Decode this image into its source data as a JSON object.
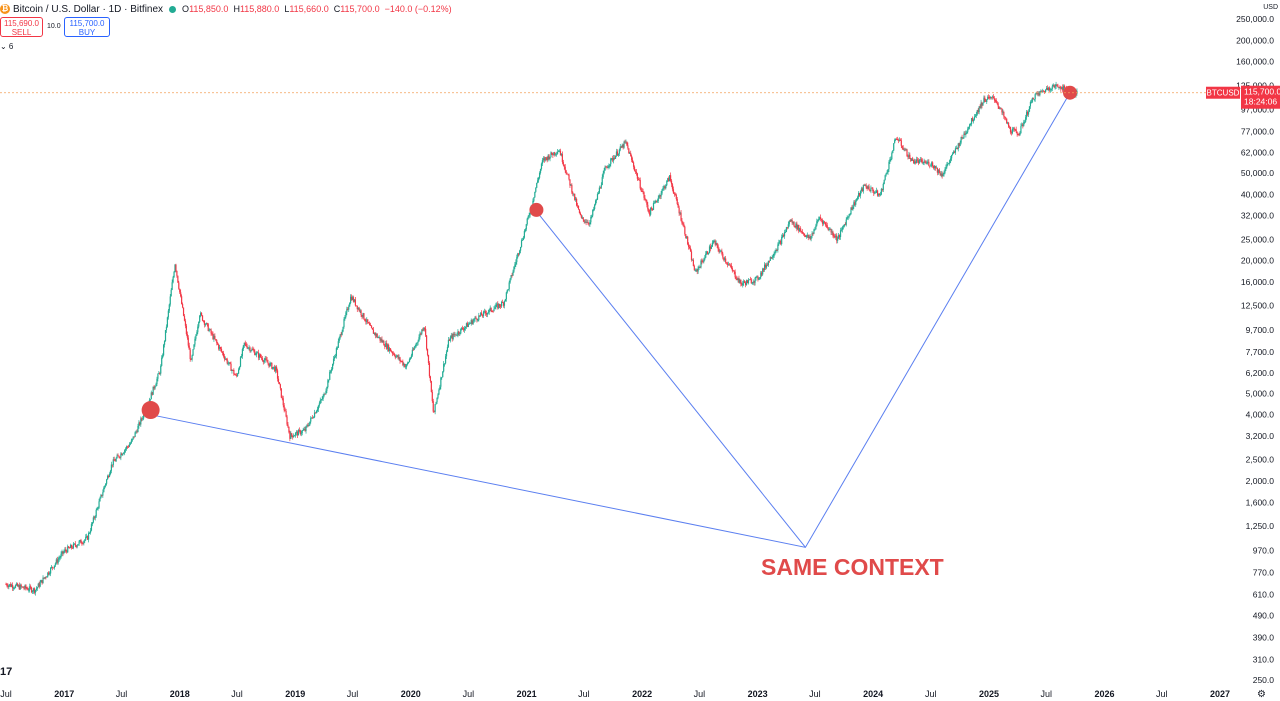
{
  "header": {
    "coin_icon": "bitcoin-icon",
    "symbol_title": "Bitcoin / U.S. Dollar · 1D · Bitfinex",
    "ohlc": {
      "open_label": "O",
      "open": "115,850.0",
      "high_label": "H",
      "high": "115,880.0",
      "low_label": "L",
      "low": "115,660.0",
      "close_label": "C",
      "close": "115,700.0",
      "change": "−140.0 (−0.12%)"
    }
  },
  "trade": {
    "sell_price": "115,690.0",
    "sell_label": "SELL",
    "spread": "10.0",
    "buy_price": "115,700.0",
    "buy_label": "BUY"
  },
  "indicators_toggle": "⌄ 6",
  "price_scale": {
    "currency": "USD",
    "ticks": [
      "250,000.0",
      "200,000.0",
      "160,000.0",
      "125,000.0",
      "97,000.0",
      "77,000.0",
      "62,000.0",
      "50,000.0",
      "40,000.0",
      "32,000.0",
      "25,000.0",
      "20,000.0",
      "16,000.0",
      "12,500.0",
      "9,700.0",
      "7,700.0",
      "6,200.0",
      "5,000.0",
      "4,000.0",
      "3,200.0",
      "2,500.0",
      "2,000.0",
      "1,600.0",
      "1,250.0",
      "970.0",
      "770.0",
      "610.0",
      "490.0",
      "390.0",
      "310.0",
      "250.0"
    ]
  },
  "last_price": {
    "symbol": "BTCUSD",
    "price": "115,700.0",
    "countdown": "18:24:06"
  },
  "time_axis": {
    "labels": [
      "Jul",
      "2017",
      "Jul",
      "2018",
      "Jul",
      "2019",
      "Jul",
      "2020",
      "Jul",
      "2021",
      "Jul",
      "2022",
      "Jul",
      "2023",
      "Jul",
      "2024",
      "Jul",
      "2025",
      "Jul",
      "2026",
      "Jul",
      "2027"
    ]
  },
  "annotation": {
    "text": "SAME CONTEXT"
  },
  "logo": "TradingView-logo",
  "colors": {
    "up": "#22ab94",
    "down": "#f23645",
    "marker": "#e04a4a",
    "trendline": "#5b7ff0",
    "annotation": "#e04a4a",
    "price_line": "#f2a05a"
  },
  "chart_data": {
    "type": "line",
    "title": "Bitcoin / U.S. Dollar · 1D · Bitfinex",
    "xlabel": "",
    "ylabel": "USD",
    "y_scale": "log",
    "ylim": [
      250,
      250000
    ],
    "xlim": [
      "2016-07-01",
      "2027-01-01"
    ],
    "series": [
      {
        "name": "BTCUSD",
        "x": [
          "2016-07-01",
          "2016-10-01",
          "2017-01-01",
          "2017-03-15",
          "2017-06-01",
          "2017-08-01",
          "2017-09-15",
          "2017-11-01",
          "2017-12-17",
          "2018-02-06",
          "2018-03-05",
          "2018-06-29",
          "2018-07-24",
          "2018-11-01",
          "2018-12-15",
          "2019-02-01",
          "2019-04-02",
          "2019-06-26",
          "2019-09-01",
          "2019-12-18",
          "2020-02-13",
          "2020-03-13",
          "2020-05-01",
          "2020-07-27",
          "2020-10-21",
          "2020-12-31",
          "2021-02-21",
          "2021-04-14",
          "2021-06-22",
          "2021-07-20",
          "2021-09-07",
          "2021-11-10",
          "2022-01-24",
          "2022-03-29",
          "2022-05-12",
          "2022-06-18",
          "2022-08-15",
          "2022-11-09",
          "2022-12-31",
          "2023-03-15",
          "2023-04-14",
          "2023-06-15",
          "2023-07-15",
          "2023-09-11",
          "2023-10-24",
          "2023-12-05",
          "2024-01-23",
          "2024-03-14",
          "2024-05-01",
          "2024-07-05",
          "2024-08-05",
          "2024-11-12",
          "2024-12-17",
          "2025-01-20",
          "2025-03-10",
          "2025-04-07",
          "2025-05-22",
          "2025-07-14",
          "2025-08-14",
          "2025-09-14",
          "2025-10-06"
        ],
        "y": [
          680,
          640,
          960,
          1100,
          2400,
          3000,
          4200,
          6400,
          19500,
          6900,
          11500,
          5900,
          8400,
          6400,
          3200,
          3400,
          4900,
          13800,
          9600,
          6600,
          10300,
          4000,
          8800,
          11000,
          12900,
          29000,
          57000,
          64000,
          31000,
          29800,
          52800,
          68900,
          33000,
          47800,
          28500,
          17600,
          24400,
          15700,
          16500,
          24500,
          30500,
          25000,
          31500,
          25000,
          34500,
          44000,
          39500,
          73000,
          57000,
          55000,
          49000,
          89000,
          108000,
          109000,
          78000,
          76000,
          111000,
          123000,
          124000,
          115000,
          115700
        ]
      },
      {
        "name": "",
        "type": "annotation-line",
        "x": [
          "2017-10-01",
          "2023-06-01",
          "2025-09-14"
        ],
        "y": [
          4000,
          1000,
          115700
        ]
      },
      {
        "name": "",
        "type": "annotation-line",
        "x": [
          "2021-02-01",
          "2023-06-01"
        ],
        "y": [
          33500,
          1000
        ]
      }
    ],
    "markers": [
      {
        "x": "2017-10-01",
        "y": 4200,
        "size": "large"
      },
      {
        "x": "2021-02-01",
        "y": 34000,
        "size": "medium"
      },
      {
        "x": "2025-09-14",
        "y": 115700,
        "size": "medium"
      }
    ],
    "grid": false,
    "legend": "none"
  }
}
